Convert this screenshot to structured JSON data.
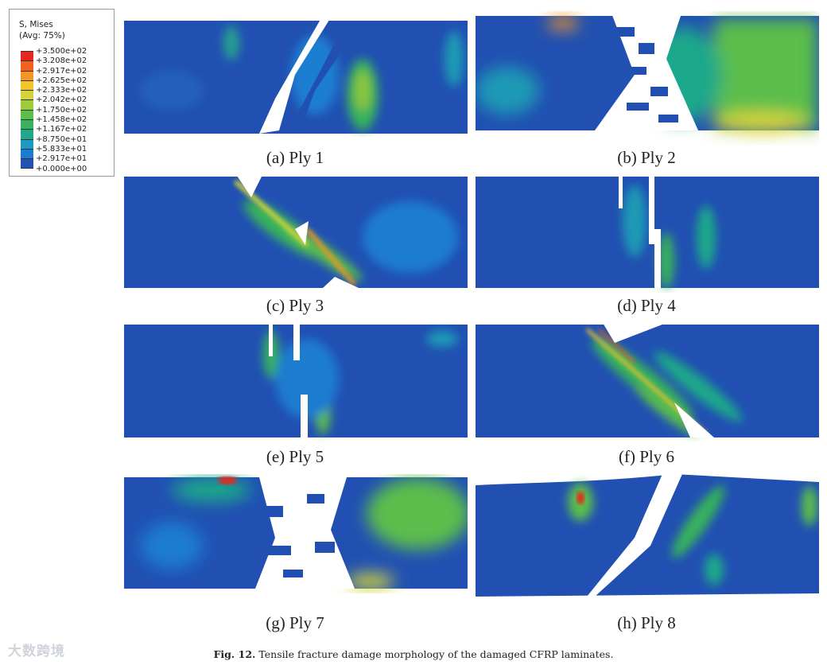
{
  "legend": {
    "title_line1": "S, Mises",
    "title_line2": "(Avg: 75%)",
    "ticks": [
      "+3.500e+02",
      "+3.208e+02",
      "+2.917e+02",
      "+2.625e+02",
      "+2.333e+02",
      "+2.042e+02",
      "+1.750e+02",
      "+1.458e+02",
      "+1.167e+02",
      "+8.750e+01",
      "+5.833e+01",
      "+2.917e+01",
      "+0.000e+00"
    ],
    "colors": [
      "#e8251f",
      "#f2621c",
      "#f59524",
      "#f3c42b",
      "#d2d43a",
      "#9ccb3c",
      "#5cbe4b",
      "#37b35d",
      "#1fa88a",
      "#1c9ac2",
      "#1f7bd0",
      "#2053b4"
    ]
  },
  "panels": [
    {
      "caption": "(a) Ply 1"
    },
    {
      "caption": "(b) Ply 2"
    },
    {
      "caption": "(c) Ply 3"
    },
    {
      "caption": "(d) Ply 4"
    },
    {
      "caption": "(e) Ply 5"
    },
    {
      "caption": "(f) Ply 6"
    },
    {
      "caption": "(g) Ply 7"
    },
    {
      "caption": "(h) Ply 8"
    }
  ],
  "figure": {
    "label": "Fig. 12.",
    "caption": "Tensile fracture damage morphology of the damaged CFRP laminates."
  },
  "watermark": "大数跨境"
}
